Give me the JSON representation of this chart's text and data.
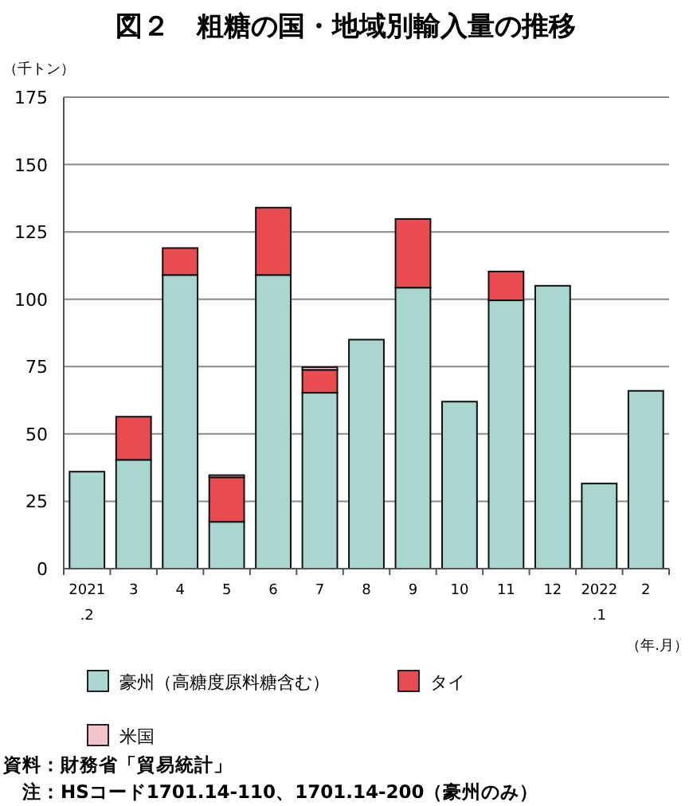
{
  "chart_data": {
    "type": "bar",
    "title": "図２　粗糖の国・地域別輸入量の推移",
    "ylabel": "（千トン）",
    "xlabel": "（年.月）",
    "stacked": true,
    "categories": [
      "2021\n.2",
      "3",
      "4",
      "5",
      "6",
      "7",
      "8",
      "9",
      "10",
      "11",
      "12",
      "2022\n.1",
      "2"
    ],
    "series": [
      {
        "name": "豪州（高糖度原料糖含む）",
        "color": "#a9d6cf",
        "values": [
          36,
          40.4,
          109,
          17.4,
          109,
          65.3,
          85,
          104.3,
          62,
          99.6,
          105,
          31.6,
          66
        ]
      },
      {
        "name": "タイ",
        "color": "#e84c50",
        "values": [
          0,
          16,
          10,
          16.5,
          25,
          8.5,
          0,
          25.5,
          0,
          10.7,
          0,
          0,
          0
        ]
      },
      {
        "name": "米国",
        "color": "#f4c4cc",
        "values": [
          0,
          0,
          0,
          0.8,
          0,
          1,
          0,
          0,
          0,
          0,
          0,
          0,
          0
        ]
      }
    ],
    "ylim": [
      0,
      175
    ],
    "yticks": [
      0,
      25,
      50,
      75,
      100,
      125,
      150,
      175
    ],
    "grid": "y",
    "legend": "bottom",
    "annotations": [
      "資料：財務省「貿易統計」",
      "注：HSコード1701.14-110、1701.14-200（豪州のみ）"
    ]
  }
}
